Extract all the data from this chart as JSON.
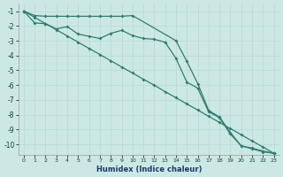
{
  "xlabel": "Humidex (Indice chaleur)",
  "bg_color": "#cce8e4",
  "line_color": "#2e7d70",
  "grid_color": "#b8d8d4",
  "xlim": [
    -0.5,
    23.5
  ],
  "ylim": [
    -10.7,
    -0.5
  ],
  "yticks": [
    -1,
    -2,
    -3,
    -4,
    -5,
    -6,
    -7,
    -8,
    -9,
    -10
  ],
  "xticks": [
    0,
    1,
    2,
    3,
    4,
    5,
    6,
    7,
    8,
    9,
    10,
    11,
    12,
    13,
    14,
    15,
    16,
    17,
    18,
    19,
    20,
    21,
    22,
    23
  ],
  "line1_x": [
    0,
    1,
    2,
    3,
    4,
    5,
    6,
    7,
    8,
    9,
    10,
    14,
    15,
    16,
    17,
    18,
    19,
    20,
    21,
    22,
    23
  ],
  "line1_y": [
    -1.0,
    -1.3,
    -1.35,
    -1.35,
    -1.35,
    -1.35,
    -1.35,
    -1.35,
    -1.35,
    -1.35,
    -1.3,
    -3.0,
    -4.4,
    -5.9,
    -7.7,
    -8.15,
    -9.2,
    -10.1,
    -10.25,
    -10.45,
    -10.6
  ],
  "line2_x": [
    0,
    1,
    2,
    3,
    4,
    5,
    6,
    7,
    8,
    9,
    10,
    11,
    12,
    13,
    14,
    15,
    16,
    17,
    18,
    19,
    20,
    21,
    22,
    23
  ],
  "line2_y": [
    -1.0,
    -1.8,
    -1.85,
    -2.2,
    -2.05,
    -2.55,
    -2.7,
    -2.85,
    -2.5,
    -2.3,
    -2.65,
    -2.85,
    -2.9,
    -3.1,
    -4.2,
    -5.8,
    -6.2,
    -7.8,
    -8.2,
    -9.3,
    -10.1,
    -10.3,
    -10.5,
    -10.6
  ],
  "line3_x": [
    0,
    1,
    2,
    3,
    4,
    5,
    6,
    7,
    8,
    9,
    10,
    11,
    12,
    13,
    14,
    15,
    16,
    17,
    18,
    19,
    20,
    21,
    22,
    23
  ],
  "line3_y": [
    -1.0,
    -1.42,
    -1.85,
    -2.26,
    -2.68,
    -3.1,
    -3.52,
    -3.93,
    -4.35,
    -4.77,
    -5.18,
    -5.6,
    -6.0,
    -6.44,
    -6.85,
    -7.27,
    -7.68,
    -8.1,
    -8.52,
    -8.93,
    -9.35,
    -9.77,
    -10.18,
    -10.6
  ]
}
